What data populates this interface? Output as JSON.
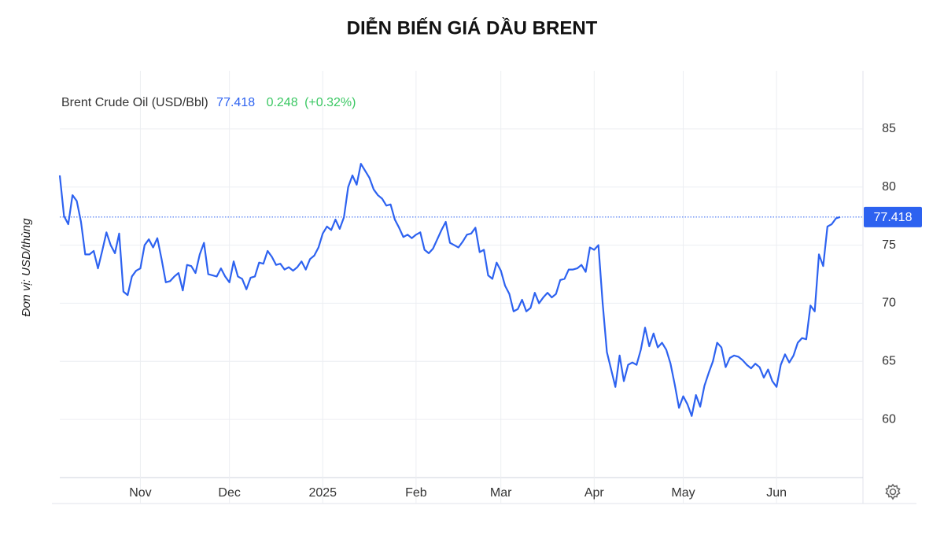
{
  "chart_data": {
    "type": "line",
    "title": "DIỄN BIẾN GIÁ DẦU BRENT",
    "y_label": "Đơn vị: USD/thùng",
    "header": {
      "name": "Brent Crude Oil (USD/Bbl)",
      "change": "0.248",
      "change_pct": "(+0.32%)",
      "change_color": "#3cc864"
    },
    "categories": [
      null,
      null,
      null,
      null,
      null,
      null,
      null,
      null,
      null,
      null,
      null,
      null,
      null,
      null,
      null,
      null,
      null,
      null,
      null,
      "Nov",
      null,
      null,
      null,
      null,
      null,
      null,
      null,
      null,
      null,
      null,
      null,
      null,
      null,
      null,
      null,
      null,
      null,
      null,
      null,
      null,
      "Dec",
      null,
      null,
      null,
      null,
      null,
      null,
      null,
      null,
      null,
      null,
      null,
      null,
      null,
      null,
      null,
      null,
      null,
      null,
      null,
      null,
      null,
      "2025",
      null,
      null,
      null,
      null,
      null,
      null,
      null,
      null,
      null,
      null,
      null,
      null,
      null,
      null,
      null,
      null,
      null,
      null,
      null,
      null,
      null,
      "Feb",
      null,
      null,
      null,
      null,
      null,
      null,
      null,
      null,
      null,
      null,
      null,
      null,
      null,
      null,
      null,
      null,
      null,
      null,
      null,
      "Mar",
      null,
      null,
      null,
      null,
      null,
      null,
      null,
      null,
      null,
      null,
      null,
      null,
      null,
      null,
      null,
      null,
      null,
      null,
      null,
      null,
      null,
      "Apr",
      null,
      null,
      null,
      null,
      null,
      null,
      null,
      null,
      null,
      null,
      null,
      null,
      null,
      null,
      null,
      null,
      null,
      null,
      null,
      null,
      "May",
      null,
      null,
      null,
      null,
      null,
      null,
      null,
      null,
      null,
      null,
      null,
      null,
      null,
      null,
      null,
      null,
      null,
      null,
      null,
      null,
      null,
      "Jun",
      null,
      null,
      null,
      null,
      null,
      null,
      null,
      null,
      null,
      null,
      null,
      null,
      null,
      null,
      null
    ],
    "series": [
      {
        "name": "Brent Crude Oil",
        "color": "#2d62f0",
        "values": [
          81,
          77.5,
          76.8,
          79.3,
          78.8,
          77,
          74.2,
          74.2,
          74.5,
          73,
          74.5,
          76.1,
          75,
          74.3,
          76,
          71,
          70.7,
          72.3,
          72.8,
          73,
          75,
          75.5,
          74.8,
          75.6,
          73.8,
          71.8,
          71.9,
          72.3,
          72.6,
          71.1,
          73.3,
          73.2,
          72.6,
          74.2,
          75.2,
          72.5,
          72.4,
          72.3,
          73,
          72.3,
          71.8,
          73.6,
          72.3,
          72.1,
          71.2,
          72.2,
          72.3,
          73.5,
          73.4,
          74.5,
          74,
          73.3,
          73.4,
          72.9,
          73.1,
          72.8,
          73.1,
          73.6,
          72.9,
          73.8,
          74.1,
          74.8,
          76,
          76.6,
          76.3,
          77.2,
          76.4,
          77.4,
          80,
          81,
          80.2,
          82,
          81.4,
          80.8,
          79.8,
          79.3,
          79,
          78.4,
          78.5,
          77.2,
          76.5,
          75.7,
          75.9,
          75.6,
          75.9,
          76.1,
          74.6,
          74.3,
          74.7,
          75.5,
          76.3,
          77,
          75.2,
          75,
          74.8,
          75.3,
          75.9,
          76,
          76.5,
          74.4,
          74.6,
          72.4,
          72.1,
          73.5,
          72.8,
          71.5,
          70.8,
          69.3,
          69.5,
          70.3,
          69.3,
          69.6,
          70.9,
          70,
          70.5,
          70.9,
          70.5,
          70.8,
          72,
          72.1,
          72.9,
          72.9,
          73,
          73.3,
          72.7,
          74.8,
          74.6,
          75,
          70,
          65.8,
          64.3,
          62.8,
          65.5,
          63.3,
          64.7,
          64.9,
          64.7,
          66,
          67.9,
          66.3,
          67.4,
          66.2,
          66.6,
          66,
          64.8,
          63,
          61,
          62,
          61.3,
          60.3,
          62.1,
          61.1,
          62.9,
          64,
          65,
          66.6,
          66.2,
          64.5,
          65.3,
          65.5,
          65.4,
          65.1,
          64.7,
          64.4,
          64.8,
          64.5,
          63.6,
          64.3,
          63.3,
          62.8,
          64.7,
          65.6,
          64.9,
          65.5,
          66.6,
          67,
          66.9,
          69.8,
          69.3,
          74.2,
          73.2,
          76.6,
          76.8,
          77.3,
          77.418
        ]
      }
    ],
    "ylim": [
      55,
      90
    ],
    "yticks": [
      60,
      65,
      70,
      75,
      80,
      85
    ],
    "grid": true
  }
}
